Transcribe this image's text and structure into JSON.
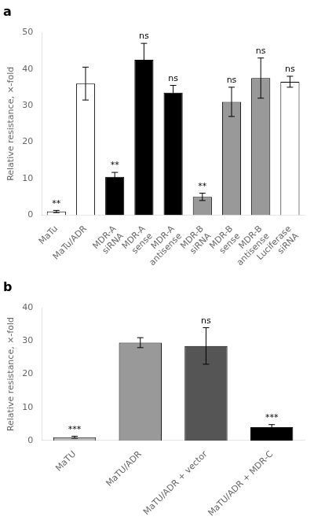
{
  "chart_data": [
    {
      "type": "bar",
      "title": "a",
      "categories": [
        "MaTu",
        "MaTu/ADR",
        "MDR-A\nsiRNA",
        "MDR-A\nsense",
        "MDR-A\nantisense",
        "MDR-B\nsiRNA",
        "MDR-B\nsense",
        "MDR-B\nantisense",
        "Luciferase\nsiRNA"
      ],
      "values": [
        1.0,
        36.0,
        10.5,
        42.5,
        33.5,
        5.0,
        31.0,
        37.5,
        36.5
      ],
      "errors": [
        0.3,
        4.5,
        1.2,
        4.5,
        2.0,
        1.0,
        4.0,
        5.5,
        1.5
      ],
      "colors": [
        "white",
        "white",
        "black",
        "black",
        "black",
        "#999999",
        "#999999",
        "#999999",
        "white"
      ],
      "annotations": [
        "**",
        null,
        "**",
        "ns",
        "ns",
        "**",
        "ns",
        "ns",
        "ns"
      ],
      "y_label": "Relative resistance, ×-fold",
      "ylim": [
        0,
        50
      ],
      "yticks": [
        0,
        10,
        20,
        30,
        40,
        50
      ],
      "grid": false
    },
    {
      "type": "bar",
      "title": "b",
      "categories": [
        "MaTU",
        "MaTU/ADR",
        "MaTU/ADR + vector",
        "MaTU/ADR + MDR-C"
      ],
      "values": [
        1.0,
        29.5,
        28.5,
        4.0
      ],
      "errors": [
        0.3,
        1.5,
        5.5,
        0.8
      ],
      "colors": [
        "#bbbbbb",
        "#999999",
        "#555555",
        "black"
      ],
      "annotations": [
        "***",
        null,
        "ns",
        "***"
      ],
      "y_label": "Relative resistance, ×-fold",
      "ylim": [
        0,
        40
      ],
      "yticks": [
        0,
        10,
        20,
        30,
        40
      ],
      "grid": false
    }
  ]
}
